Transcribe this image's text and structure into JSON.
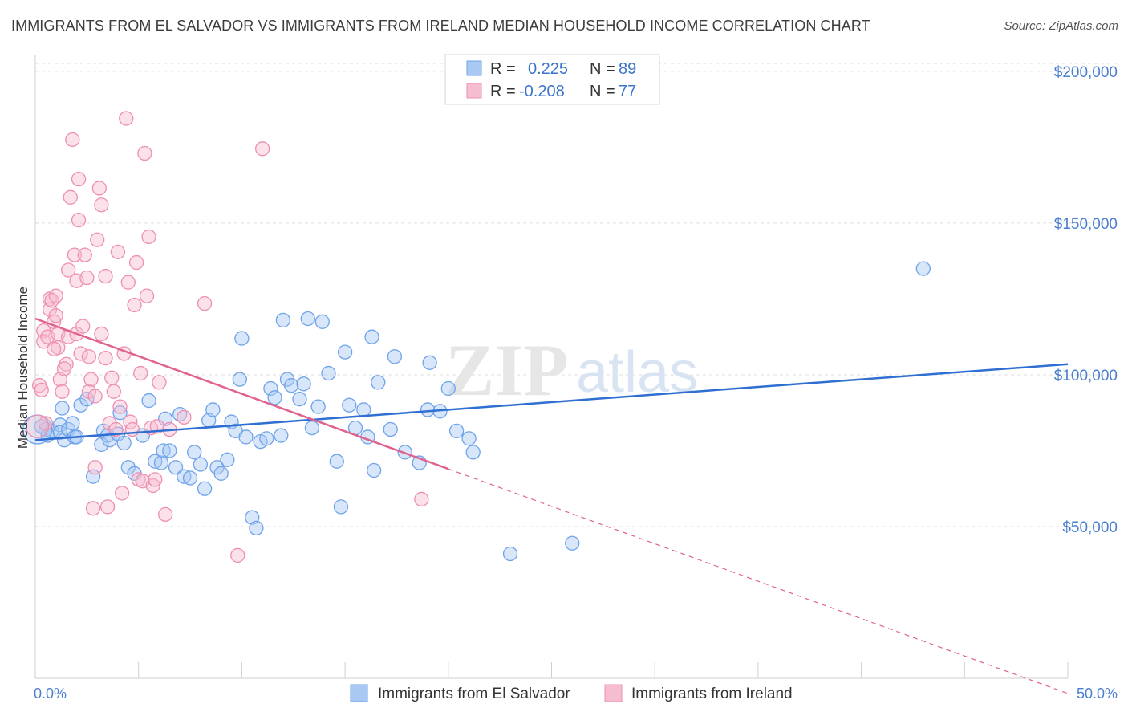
{
  "header": {
    "title": "IMMIGRANTS FROM EL SALVADOR VS IMMIGRANTS FROM IRELAND MEDIAN HOUSEHOLD INCOME CORRELATION CHART",
    "source": "Source: ZipAtlas.com"
  },
  "watermark": {
    "zip": "ZIP",
    "atlas": "atlas"
  },
  "legend": {
    "r_label": "R =",
    "n_label": "N =",
    "entries": [
      {
        "r": "0.225",
        "n": "89",
        "color": "#6fa3ea"
      },
      {
        "r": "-0.208",
        "n": "77",
        "color": "#f08db0"
      }
    ]
  },
  "colors": {
    "blue_fill": "#a9c8f3",
    "blue_stroke": "#6fa3ea",
    "blue_line": "#2f6fd2",
    "pink_fill": "#f6bdd0",
    "pink_stroke": "#ee8fb1",
    "pink_line": "#e0628f",
    "grid": "#dddddd",
    "tick_text": "#4a7fd0"
  },
  "chart_data": {
    "type": "scatter",
    "title": "IMMIGRANTS FROM EL SALVADOR VS IMMIGRANTS FROM IRELAND MEDIAN HOUSEHOLD INCOME CORRELATION CHART",
    "xlabel": "",
    "ylabel": "Median Household Income",
    "xlim": [
      0,
      50
    ],
    "ylim": [
      0,
      205000
    ],
    "x_tick_labels": [
      "0.0%",
      "50.0%"
    ],
    "y_ticks": [
      50000,
      100000,
      150000,
      200000
    ],
    "y_tick_labels": [
      "$50,000",
      "$100,000",
      "$150,000",
      "$200,000"
    ],
    "grid": true,
    "legend_position": "top-center",
    "series": [
      {
        "name": "Immigrants from El Salvador",
        "r": 0.225,
        "n": 89,
        "trend": {
          "x": [
            0,
            50
          ],
          "y": [
            78500,
            103500
          ],
          "dashed_to": null
        },
        "points": [
          [
            0.3,
            83000
          ],
          [
            0.5,
            82000
          ],
          [
            0.6,
            80000
          ],
          [
            0.8,
            81500
          ],
          [
            1.2,
            83500
          ],
          [
            1.2,
            81000
          ],
          [
            1.3,
            89000
          ],
          [
            1.4,
            78500
          ],
          [
            1.6,
            82000
          ],
          [
            1.8,
            84000
          ],
          [
            1.9,
            79500
          ],
          [
            2.0,
            79500
          ],
          [
            2.2,
            90000
          ],
          [
            2.5,
            92000
          ],
          [
            2.8,
            66500
          ],
          [
            3.2,
            77000
          ],
          [
            3.3,
            81500
          ],
          [
            3.5,
            80000
          ],
          [
            3.6,
            78500
          ],
          [
            4.0,
            80500
          ],
          [
            4.1,
            87500
          ],
          [
            4.3,
            77500
          ],
          [
            4.5,
            69500
          ],
          [
            4.8,
            67500
          ],
          [
            5.2,
            80000
          ],
          [
            5.5,
            91500
          ],
          [
            5.8,
            71500
          ],
          [
            6.1,
            71000
          ],
          [
            6.2,
            75000
          ],
          [
            6.3,
            85500
          ],
          [
            6.5,
            75000
          ],
          [
            6.8,
            69500
          ],
          [
            7.0,
            87000
          ],
          [
            7.2,
            66500
          ],
          [
            7.5,
            66000
          ],
          [
            7.7,
            74500
          ],
          [
            8.0,
            70500
          ],
          [
            8.2,
            62500
          ],
          [
            8.4,
            85000
          ],
          [
            8.6,
            88500
          ],
          [
            8.8,
            69500
          ],
          [
            9.0,
            67500
          ],
          [
            9.3,
            72000
          ],
          [
            9.5,
            84500
          ],
          [
            9.7,
            81500
          ],
          [
            9.9,
            98500
          ],
          [
            10.0,
            112000
          ],
          [
            10.2,
            79500
          ],
          [
            10.5,
            53000
          ],
          [
            10.7,
            49500
          ],
          [
            10.9,
            78000
          ],
          [
            11.2,
            79000
          ],
          [
            11.4,
            95500
          ],
          [
            11.6,
            92500
          ],
          [
            11.9,
            80000
          ],
          [
            12.0,
            118000
          ],
          [
            12.2,
            98500
          ],
          [
            12.4,
            96500
          ],
          [
            12.8,
            92000
          ],
          [
            13.0,
            97000
          ],
          [
            13.2,
            118500
          ],
          [
            13.4,
            82500
          ],
          [
            13.7,
            89500
          ],
          [
            13.9,
            117500
          ],
          [
            14.2,
            100500
          ],
          [
            14.6,
            71500
          ],
          [
            14.8,
            56500
          ],
          [
            15.0,
            107500
          ],
          [
            15.2,
            90000
          ],
          [
            15.5,
            82500
          ],
          [
            15.9,
            88500
          ],
          [
            16.1,
            79500
          ],
          [
            16.3,
            112500
          ],
          [
            16.4,
            68500
          ],
          [
            16.6,
            97500
          ],
          [
            17.2,
            82000
          ],
          [
            17.4,
            106000
          ],
          [
            17.9,
            74500
          ],
          [
            18.6,
            71000
          ],
          [
            19.0,
            88500
          ],
          [
            19.1,
            104000
          ],
          [
            19.6,
            88000
          ],
          [
            20.0,
            95500
          ],
          [
            20.4,
            81500
          ],
          [
            21.0,
            79000
          ],
          [
            21.2,
            74500
          ],
          [
            23.0,
            41000
          ],
          [
            26.0,
            44500
          ],
          [
            43.0,
            135000
          ]
        ]
      },
      {
        "name": "Immigrants from Ireland",
        "r": -0.208,
        "n": 77,
        "trend": {
          "x": [
            0,
            20
          ],
          "y": [
            118500,
            69000
          ],
          "dashed_to": {
            "x": 50,
            "y": -5000
          }
        },
        "points": [
          [
            0.2,
            96500
          ],
          [
            0.3,
            95000
          ],
          [
            0.4,
            114500
          ],
          [
            0.4,
            111000
          ],
          [
            0.6,
            112500
          ],
          [
            0.7,
            125000
          ],
          [
            0.7,
            121500
          ],
          [
            0.8,
            124500
          ],
          [
            0.9,
            117500
          ],
          [
            1.0,
            126000
          ],
          [
            1.0,
            119500
          ],
          [
            1.1,
            113500
          ],
          [
            1.1,
            109000
          ],
          [
            1.2,
            98500
          ],
          [
            1.3,
            94500
          ],
          [
            1.5,
            103500
          ],
          [
            1.6,
            112500
          ],
          [
            1.6,
            134500
          ],
          [
            1.7,
            158500
          ],
          [
            1.8,
            177500
          ],
          [
            1.9,
            139500
          ],
          [
            2.0,
            131000
          ],
          [
            2.0,
            113500
          ],
          [
            2.1,
            164500
          ],
          [
            2.1,
            151000
          ],
          [
            2.2,
            107000
          ],
          [
            2.3,
            116000
          ],
          [
            2.4,
            139500
          ],
          [
            2.5,
            132000
          ],
          [
            2.6,
            94500
          ],
          [
            2.6,
            106000
          ],
          [
            2.7,
            98500
          ],
          [
            2.8,
            56000
          ],
          [
            2.9,
            69500
          ],
          [
            3.0,
            144500
          ],
          [
            3.1,
            161500
          ],
          [
            3.2,
            156000
          ],
          [
            3.2,
            113500
          ],
          [
            3.4,
            105500
          ],
          [
            3.4,
            132500
          ],
          [
            3.5,
            56500
          ],
          [
            3.6,
            84000
          ],
          [
            3.8,
            94500
          ],
          [
            3.9,
            82000
          ],
          [
            4.0,
            140500
          ],
          [
            4.2,
            61000
          ],
          [
            4.3,
            107000
          ],
          [
            4.4,
            184500
          ],
          [
            4.5,
            130500
          ],
          [
            4.6,
            84500
          ],
          [
            4.7,
            82000
          ],
          [
            4.8,
            123000
          ],
          [
            4.9,
            137000
          ],
          [
            5.0,
            65500
          ],
          [
            5.1,
            100500
          ],
          [
            5.2,
            65000
          ],
          [
            5.3,
            173000
          ],
          [
            5.4,
            126000
          ],
          [
            5.5,
            145500
          ],
          [
            5.6,
            82500
          ],
          [
            5.7,
            63500
          ],
          [
            5.8,
            65500
          ],
          [
            5.9,
            83000
          ],
          [
            6.0,
            97500
          ],
          [
            6.3,
            54000
          ],
          [
            6.5,
            82000
          ],
          [
            7.2,
            86000
          ],
          [
            8.2,
            123500
          ],
          [
            9.8,
            40500
          ],
          [
            11.0,
            174500
          ],
          [
            18.7,
            59000
          ],
          [
            0.5,
            84000
          ],
          [
            0.9,
            108500
          ],
          [
            1.4,
            102000
          ],
          [
            2.9,
            93000
          ],
          [
            3.7,
            99000
          ],
          [
            4.1,
            89500
          ]
        ]
      }
    ]
  },
  "bottom_legend": [
    {
      "label": "Immigrants from El Salvador"
    },
    {
      "label": "Immigrants from Ireland"
    }
  ]
}
